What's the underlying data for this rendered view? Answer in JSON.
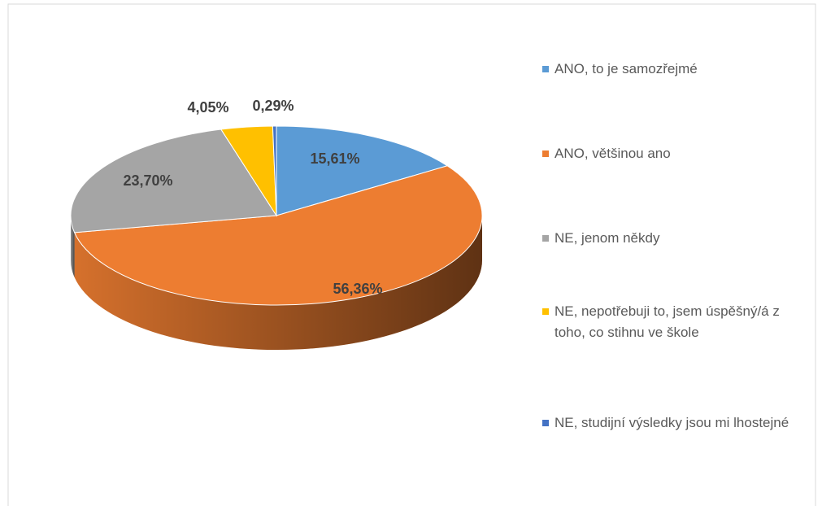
{
  "chart_data": {
    "type": "pie3d",
    "categories": [
      "ANO, to je samozřejmé",
      "ANO, většinou ano",
      "NE, jenom někdy",
      "NE, nepotřebuji to, jsem úspěšný/á z toho, co stihnu ve škole",
      "NE, studijní výsledky jsou mi lhostejné"
    ],
    "values": [
      15.61,
      56.36,
      23.7,
      4.05,
      0.29
    ],
    "value_labels": [
      "15,61%",
      "56,36%",
      "23,70%",
      "4,05%",
      "0,29%"
    ],
    "colors": [
      "#5b9bd5",
      "#ed7d31",
      "#a5a5a5",
      "#ffc000",
      "#4472c4"
    ],
    "legend": "right"
  }
}
